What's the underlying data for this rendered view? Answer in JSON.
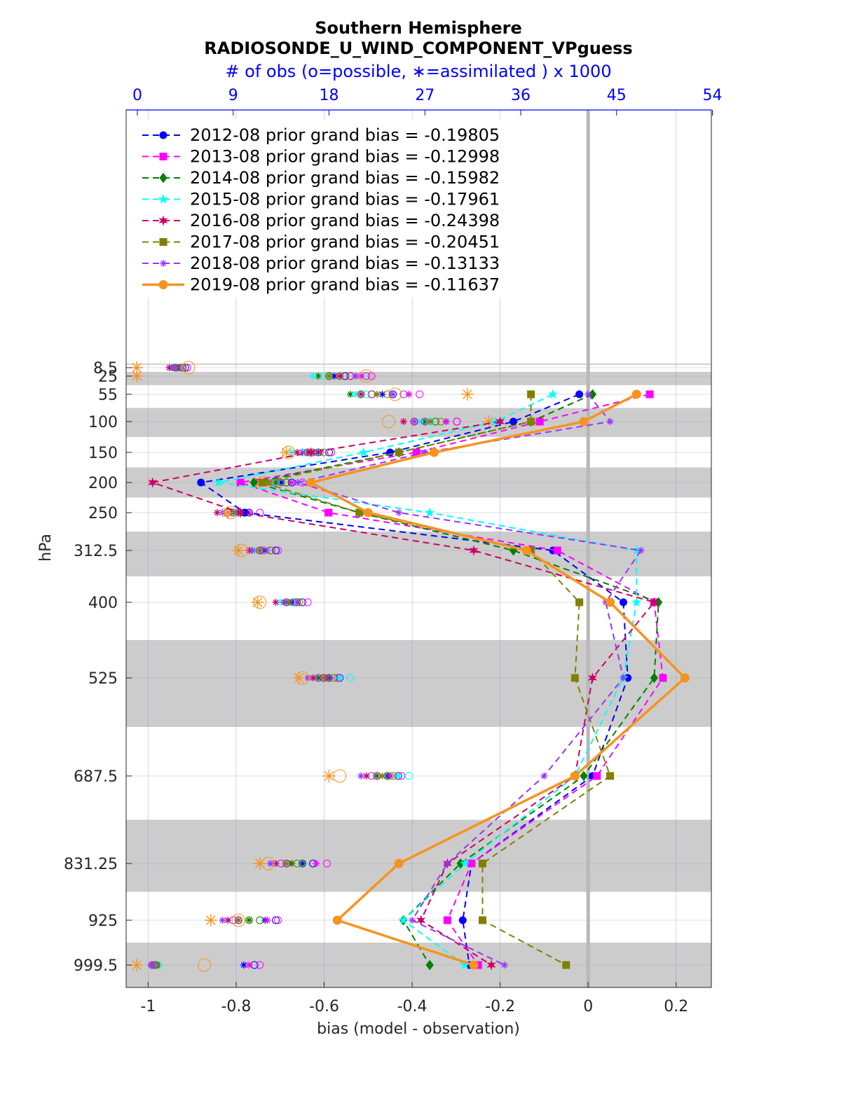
{
  "chart_data": {
    "type": "line",
    "title": "Southern Hemisphere",
    "subtitle": "RADIOSONDE_U_WIND_COMPONENT_VPguess",
    "top_axis_label": "# of obs (o=possible, ∗=assimilated ) x 1000",
    "xlabel": "bias (model - observation)",
    "ylabel": "hPa",
    "xlim": [
      -1.05,
      0.28
    ],
    "x_ticks": [
      -1,
      -0.8,
      -0.6,
      -0.4,
      -0.2,
      0,
      0.2
    ],
    "x_tick_labels": [
      "-1",
      "-0.8",
      "-0.6",
      "-0.4",
      "-0.2",
      "0",
      "0.2"
    ],
    "top_xlim": [
      -1.05,
      53.9
    ],
    "top_ticks": [
      0,
      9,
      18,
      27,
      36,
      45,
      54
    ],
    "top_tick_labels": [
      "0",
      "9",
      "18",
      "27",
      "36",
      "45",
      "54"
    ],
    "levels": [
      8.5,
      25,
      55,
      100,
      150,
      200,
      250,
      312.5,
      400,
      525,
      687.5,
      831.25,
      925,
      999.5
    ],
    "level_labels": [
      "8.5",
      "25",
      "55",
      "100",
      "150",
      "200",
      "250",
      "312.5",
      "400",
      "525",
      "687.5",
      "831.25",
      "925",
      "999.5"
    ],
    "legend_position": "top-left",
    "grid": true,
    "series": [
      {
        "name": "2012-08 prior grand bias = -0.19805",
        "color": "#0000ff",
        "marker": "circle",
        "style": "dashed",
        "bias": [
          null,
          null,
          -0.02,
          -0.17,
          -0.45,
          -0.88,
          -0.78,
          -0.08,
          0.08,
          0.09,
          0.01,
          -0.265,
          -0.285,
          -0.27
        ],
        "obs_possible": [
          4.5,
          19.5,
          24.0,
          30.0,
          18.0,
          14.5,
          10.5,
          13.0,
          15.5,
          19.0,
          24.5,
          16.5,
          13.0,
          11.0
        ],
        "obs_assimilated": [
          3.9,
          18.5,
          23.0,
          29.0,
          17.0,
          13.5,
          9.5,
          12.0,
          14.5,
          18.0,
          23.5,
          15.5,
          12.0,
          10.0
        ]
      },
      {
        "name": "2013-08 prior grand bias = -0.12998",
        "color": "#ff00ff",
        "marker": "square",
        "style": "dashed",
        "bias": [
          null,
          null,
          0.14,
          -0.11,
          -0.39,
          -0.79,
          -0.59,
          -0.07,
          0.15,
          0.17,
          0.02,
          -0.265,
          -0.32,
          -0.25
        ],
        "obs_possible": [
          4.7,
          22.0,
          26.5,
          30.0,
          18.2,
          15.5,
          11.5,
          13.2,
          16.0,
          18.8,
          24.8,
          17.8,
          13.2,
          11.5
        ],
        "obs_assimilated": [
          4.0,
          21.0,
          25.5,
          29.0,
          17.2,
          14.5,
          10.5,
          12.2,
          15.0,
          17.8,
          23.8,
          16.8,
          12.2,
          10.5
        ]
      },
      {
        "name": "2014-08 prior grand bias = -0.15982",
        "color": "#008000",
        "marker": "diamond",
        "style": "dashed",
        "bias": [
          null,
          null,
          0.01,
          -0.13,
          -0.43,
          -0.76,
          -0.52,
          -0.17,
          0.16,
          0.15,
          -0.01,
          -0.29,
          -0.42,
          -0.36
        ],
        "obs_possible": [
          4.2,
          18.0,
          21.0,
          28.0,
          17.0,
          14.0,
          10.0,
          12.5,
          15.0,
          18.0,
          23.5,
          15.5,
          11.5,
          1.8
        ],
        "obs_assimilated": [
          3.5,
          17.0,
          20.0,
          27.0,
          16.0,
          13.0,
          9.0,
          11.5,
          14.0,
          17.0,
          22.5,
          14.5,
          10.5,
          1.8
        ]
      },
      {
        "name": "2015-08 prior grand bias = -0.17961",
        "color": "#00ffff",
        "marker": "star",
        "style": "dashed",
        "bias": [
          null,
          null,
          -0.08,
          -0.21,
          -0.51,
          -0.84,
          -0.36,
          0.11,
          0.11,
          0.08,
          -0.03,
          -0.28,
          -0.42,
          -0.28
        ],
        "obs_possible": [
          3.8,
          17.5,
          21.5,
          27.5,
          15.5,
          13.0,
          9.5,
          12.0,
          14.5,
          20.0,
          25.5,
          15.0,
          10.5,
          2.0
        ],
        "obs_assimilated": [
          3.2,
          16.5,
          20.5,
          26.5,
          14.5,
          12.0,
          8.5,
          11.0,
          13.5,
          19.0,
          24.5,
          14.0,
          9.5,
          1.7
        ]
      },
      {
        "name": "2016-08 prior grand bias = -0.24398",
        "color": "#cc0066",
        "marker": "hexagram",
        "style": "dashed",
        "bias": [
          null,
          null,
          null,
          -0.2,
          -0.63,
          -0.99,
          -0.79,
          -0.26,
          0.15,
          0.01,
          -0.03,
          -0.32,
          -0.38,
          -0.22
        ],
        "obs_possible": [
          3.6,
          20.0,
          22.0,
          26.0,
          16.0,
          12.0,
          8.5,
          11.5,
          14.0,
          17.5,
          22.5,
          14.0,
          9.5,
          1.6
        ],
        "obs_assimilated": [
          3.0,
          19.0,
          21.0,
          25.0,
          15.0,
          11.0,
          7.5,
          10.5,
          13.0,
          16.5,
          21.5,
          13.0,
          8.5,
          1.5
        ]
      },
      {
        "name": "2017-08 prior grand bias = -0.20451",
        "color": "#808000",
        "marker": "square",
        "style": "dashed",
        "bias": [
          null,
          null,
          -0.13,
          -0.13,
          -0.43,
          -0.74,
          -0.52,
          -0.13,
          -0.02,
          -0.03,
          0.05,
          -0.24,
          -0.24,
          -0.05
        ],
        "obs_possible": [
          4.3,
          19.0,
          23.5,
          28.5,
          17.5,
          13.5,
          9.5,
          12.5,
          15.2,
          18.5,
          24.0,
          15.0,
          10.5,
          1.7
        ],
        "obs_assimilated": [
          3.6,
          18.0,
          22.5,
          27.5,
          16.5,
          12.5,
          8.5,
          11.5,
          14.2,
          17.5,
          23.0,
          14.0,
          9.5,
          1.5
        ]
      },
      {
        "name": "2018-08 prior grand bias = -0.13133",
        "color": "#9933ff",
        "marker": "asterisk",
        "style": "dashed",
        "bias": [
          null,
          null,
          0.0,
          0.05,
          -0.37,
          -0.66,
          -0.43,
          0.12,
          0.04,
          0.08,
          -0.1,
          -0.32,
          -0.4,
          -0.19
        ],
        "obs_possible": [
          4.0,
          21.5,
          25.0,
          27.0,
          16.5,
          12.8,
          9.0,
          11.8,
          14.8,
          17.0,
          22.0,
          13.5,
          9.0,
          1.4
        ],
        "obs_assimilated": [
          3.3,
          20.5,
          24.0,
          26.0,
          15.5,
          11.8,
          8.0,
          10.8,
          13.8,
          16.0,
          21.0,
          12.5,
          8.0,
          1.3
        ]
      },
      {
        "name": "2019-08 prior grand bias = -0.11637",
        "color": "#f7931e",
        "marker": "circle",
        "style": "solid",
        "bias": [
          null,
          null,
          0.11,
          -0.01,
          -0.35,
          -0.63,
          -0.5,
          -0.14,
          0.05,
          0.22,
          -0.03,
          -0.43,
          -0.57,
          -0.26
        ],
        "obs_possible": [
          4.8,
          21.5,
          24.2,
          23.6,
          14.2,
          11.9,
          8.8,
          9.8,
          11.5,
          15.5,
          19.0,
          12.3,
          9.5,
          6.3
        ],
        "obs_assimilated": [
          -0.05,
          -0.05,
          31.0,
          33.0,
          14.0,
          11.5,
          8.5,
          9.5,
          11.3,
          15.2,
          18.0,
          11.5,
          6.9,
          -0.05
        ]
      }
    ]
  }
}
